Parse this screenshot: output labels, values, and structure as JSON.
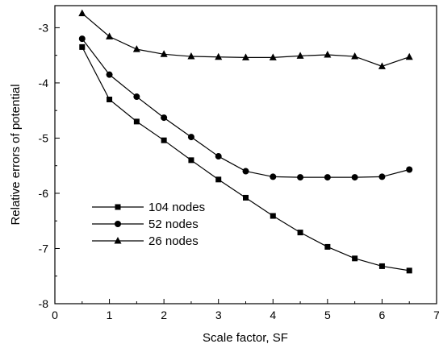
{
  "chart_data": {
    "type": "line",
    "title": "",
    "xlabel": "Scale factor, SF",
    "ylabel": "Relative errors of potential",
    "xlim": [
      0,
      7
    ],
    "ylim": [
      -8,
      -2.6
    ],
    "xticks": [
      0,
      1,
      2,
      3,
      4,
      5,
      6,
      7
    ],
    "yticks": [
      -8,
      -7,
      -6,
      -5,
      -4,
      -3
    ],
    "grid": false,
    "legend_position": "lower-left",
    "series": [
      {
        "name": "104 nodes",
        "marker": "square",
        "x": [
          0.5,
          1.0,
          1.5,
          2.0,
          2.5,
          3.0,
          3.5,
          4.0,
          4.5,
          5.0,
          5.5,
          6.0,
          6.5
        ],
        "y": [
          -3.35,
          -4.3,
          -4.7,
          -5.04,
          -5.4,
          -5.75,
          -6.08,
          -6.41,
          -6.71,
          -6.97,
          -7.18,
          -7.32,
          -7.4
        ]
      },
      {
        "name": "52 nodes",
        "marker": "circle",
        "x": [
          0.5,
          1.0,
          1.5,
          2.0,
          2.5,
          3.0,
          3.5,
          4.0,
          4.5,
          5.0,
          5.5,
          6.0,
          6.5
        ],
        "y": [
          -3.2,
          -3.85,
          -4.25,
          -4.63,
          -4.98,
          -5.33,
          -5.6,
          -5.7,
          -5.71,
          -5.71,
          -5.71,
          -5.7,
          -5.57
        ]
      },
      {
        "name": "26 nodes",
        "marker": "triangle",
        "x": [
          0.5,
          1.0,
          1.5,
          2.0,
          2.5,
          3.0,
          3.5,
          4.0,
          4.5,
          5.0,
          5.5,
          6.0,
          6.5
        ],
        "y": [
          -2.74,
          -3.16,
          -3.39,
          -3.48,
          -3.52,
          -3.53,
          -3.54,
          -3.54,
          -3.51,
          -3.49,
          -3.52,
          -3.7,
          -3.53
        ]
      }
    ]
  }
}
